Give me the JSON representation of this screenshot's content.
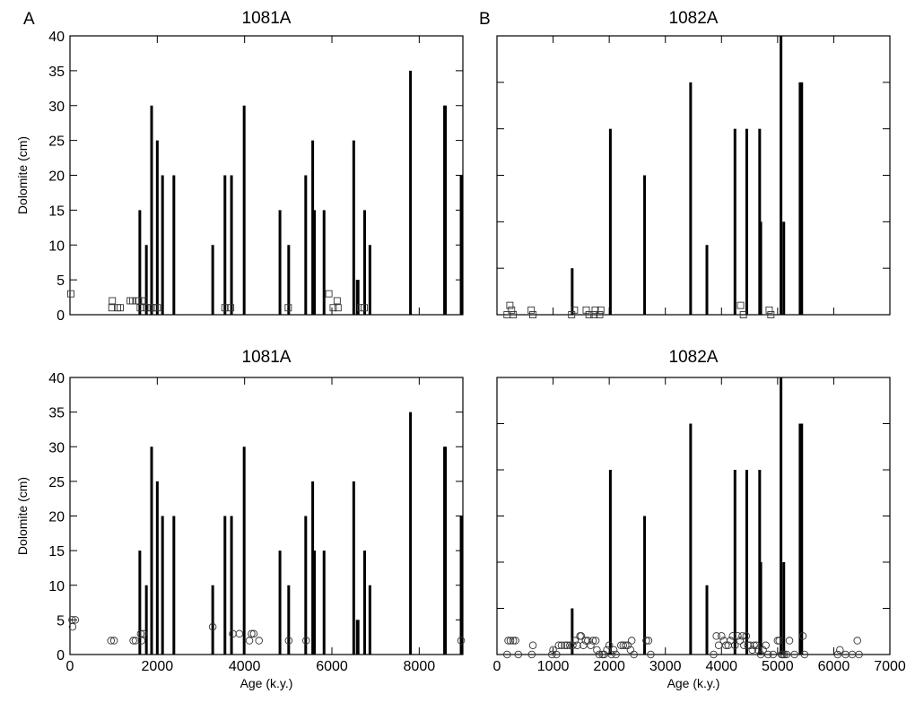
{
  "chart_data": [
    {
      "id": "panel-1081a-top",
      "type": "bar",
      "panel_letter": "A",
      "title": "1081A",
      "xlabel": "",
      "ylabel": "Dolomite (cm)",
      "xlim": [
        0,
        9000
      ],
      "ylim": [
        0,
        40
      ],
      "x_ticks": [
        0,
        2000,
        4000,
        6000,
        8000
      ],
      "x_tick_labels": [],
      "y_ticks": [
        0,
        5,
        10,
        15,
        20,
        25,
        30,
        35,
        40
      ],
      "y_tick_labels": [
        "0",
        "5",
        "10",
        "15",
        "20",
        "25",
        "30",
        "35",
        "40"
      ],
      "bars": [
        {
          "x": 1600,
          "y": 15
        },
        {
          "x": 1750,
          "y": 10
        },
        {
          "x": 1870,
          "y": 30
        },
        {
          "x": 2000,
          "y": 25
        },
        {
          "x": 2120,
          "y": 20
        },
        {
          "x": 2380,
          "y": 20
        },
        {
          "x": 3270,
          "y": 10
        },
        {
          "x": 3550,
          "y": 20
        },
        {
          "x": 3700,
          "y": 20
        },
        {
          "x": 3990,
          "y": 30
        },
        {
          "x": 4810,
          "y": 15
        },
        {
          "x": 5010,
          "y": 10
        },
        {
          "x": 5400,
          "y": 20
        },
        {
          "x": 5560,
          "y": 25
        },
        {
          "x": 5600,
          "y": 15
        },
        {
          "x": 5820,
          "y": 15
        },
        {
          "x": 6500,
          "y": 25
        },
        {
          "x": 6580,
          "y": 5
        },
        {
          "x": 6600,
          "y": 5
        },
        {
          "x": 6750,
          "y": 15
        },
        {
          "x": 6870,
          "y": 10
        },
        {
          "x": 7800,
          "y": 35
        },
        {
          "x": 8580,
          "y": 30
        },
        {
          "x": 8600,
          "y": 30
        },
        {
          "x": 8960,
          "y": 20
        }
      ],
      "points": {
        "marker": "square",
        "values": [
          {
            "x": 20,
            "y": 3
          },
          {
            "x": 970,
            "y": 2
          },
          {
            "x": 960,
            "y": 1
          },
          {
            "x": 1090,
            "y": 1
          },
          {
            "x": 1150,
            "y": 1
          },
          {
            "x": 1380,
            "y": 2
          },
          {
            "x": 1440,
            "y": 2
          },
          {
            "x": 1510,
            "y": 2
          },
          {
            "x": 1570,
            "y": 2
          },
          {
            "x": 1650,
            "y": 2
          },
          {
            "x": 1610,
            "y": 1
          },
          {
            "x": 1700,
            "y": 2
          },
          {
            "x": 1760,
            "y": 1
          },
          {
            "x": 1860,
            "y": 1
          },
          {
            "x": 1930,
            "y": 1
          },
          {
            "x": 2000,
            "y": 1
          },
          {
            "x": 3550,
            "y": 1
          },
          {
            "x": 3680,
            "y": 1
          },
          {
            "x": 5000,
            "y": 1
          },
          {
            "x": 5930,
            "y": 3
          },
          {
            "x": 6030,
            "y": 1
          },
          {
            "x": 6120,
            "y": 2
          },
          {
            "x": 6140,
            "y": 1
          },
          {
            "x": 6660,
            "y": 1
          },
          {
            "x": 6740,
            "y": 1
          }
        ]
      }
    },
    {
      "id": "panel-1082a-top",
      "type": "bar",
      "panel_letter": "B",
      "title": "1082A",
      "xlabel": "",
      "ylabel": "",
      "xlim": [
        0,
        7000
      ],
      "ylim": [
        0,
        30
      ],
      "x_ticks": [
        0,
        1000,
        2000,
        3000,
        4000,
        5000,
        6000,
        7000
      ],
      "x_tick_labels": [],
      "y_ticks": [
        0,
        5,
        10,
        15,
        20,
        25,
        30
      ],
      "y_tick_labels": [],
      "bars": [
        {
          "x": 1340,
          "y": 5
        },
        {
          "x": 2020,
          "y": 20
        },
        {
          "x": 2630,
          "y": 15
        },
        {
          "x": 3450,
          "y": 25
        },
        {
          "x": 3740,
          "y": 7.5
        },
        {
          "x": 4240,
          "y": 20
        },
        {
          "x": 4450,
          "y": 20
        },
        {
          "x": 4680,
          "y": 20
        },
        {
          "x": 4700,
          "y": 10
        },
        {
          "x": 5060,
          "y": 30
        },
        {
          "x": 5110,
          "y": 10
        },
        {
          "x": 5400,
          "y": 25
        },
        {
          "x": 5430,
          "y": 25
        }
      ],
      "points": {
        "marker": "square",
        "values": [
          {
            "x": 180,
            "y": 0
          },
          {
            "x": 230,
            "y": 1
          },
          {
            "x": 260,
            "y": 0.5
          },
          {
            "x": 290,
            "y": 0
          },
          {
            "x": 610,
            "y": 0.5
          },
          {
            "x": 640,
            "y": 0
          },
          {
            "x": 1330,
            "y": 0
          },
          {
            "x": 1380,
            "y": 0.5
          },
          {
            "x": 1590,
            "y": 0.5
          },
          {
            "x": 1640,
            "y": 0
          },
          {
            "x": 1730,
            "y": 0
          },
          {
            "x": 1750,
            "y": 0.5
          },
          {
            "x": 1830,
            "y": 0
          },
          {
            "x": 1850,
            "y": 0.5
          },
          {
            "x": 4340,
            "y": 1
          },
          {
            "x": 4390,
            "y": 0
          },
          {
            "x": 4850,
            "y": 0.5
          },
          {
            "x": 4880,
            "y": 0
          }
        ]
      }
    },
    {
      "id": "panel-1081a-bottom",
      "type": "bar",
      "panel_letter": "",
      "title": "1081A",
      "xlabel": "Age (k.y.)",
      "ylabel": "Dolomite (cm)",
      "xlim": [
        0,
        9000
      ],
      "ylim": [
        0,
        40
      ],
      "x_ticks": [
        0,
        2000,
        4000,
        6000,
        8000
      ],
      "x_tick_labels": [
        "0",
        "2000",
        "4000",
        "6000",
        "8000"
      ],
      "y_ticks": [
        0,
        5,
        10,
        15,
        20,
        25,
        30,
        35,
        40
      ],
      "y_tick_labels": [
        "0",
        "5",
        "10",
        "15",
        "20",
        "25",
        "30",
        "35",
        "40"
      ],
      "bars": [
        {
          "x": 1600,
          "y": 15
        },
        {
          "x": 1750,
          "y": 10
        },
        {
          "x": 1870,
          "y": 30
        },
        {
          "x": 2000,
          "y": 25
        },
        {
          "x": 2120,
          "y": 20
        },
        {
          "x": 2380,
          "y": 20
        },
        {
          "x": 3270,
          "y": 10
        },
        {
          "x": 3550,
          "y": 20
        },
        {
          "x": 3700,
          "y": 20
        },
        {
          "x": 3990,
          "y": 30
        },
        {
          "x": 4810,
          "y": 15
        },
        {
          "x": 5010,
          "y": 10
        },
        {
          "x": 5400,
          "y": 20
        },
        {
          "x": 5560,
          "y": 25
        },
        {
          "x": 5600,
          "y": 15
        },
        {
          "x": 5820,
          "y": 15
        },
        {
          "x": 6500,
          "y": 25
        },
        {
          "x": 6580,
          "y": 5
        },
        {
          "x": 6600,
          "y": 5
        },
        {
          "x": 6750,
          "y": 15
        },
        {
          "x": 6870,
          "y": 10
        },
        {
          "x": 7800,
          "y": 35
        },
        {
          "x": 8580,
          "y": 30
        },
        {
          "x": 8600,
          "y": 30
        },
        {
          "x": 8960,
          "y": 20
        }
      ],
      "points": {
        "marker": "circle",
        "values": [
          {
            "x": 50,
            "y": 5
          },
          {
            "x": 60,
            "y": 4
          },
          {
            "x": 120,
            "y": 5
          },
          {
            "x": 940,
            "y": 2
          },
          {
            "x": 1010,
            "y": 2
          },
          {
            "x": 1450,
            "y": 2
          },
          {
            "x": 1500,
            "y": 2
          },
          {
            "x": 1620,
            "y": 3
          },
          {
            "x": 1640,
            "y": 2
          },
          {
            "x": 1680,
            "y": 3
          },
          {
            "x": 3270,
            "y": 4
          },
          {
            "x": 3730,
            "y": 3
          },
          {
            "x": 3880,
            "y": 3
          },
          {
            "x": 4110,
            "y": 2
          },
          {
            "x": 4160,
            "y": 3
          },
          {
            "x": 4210,
            "y": 3
          },
          {
            "x": 4330,
            "y": 2
          },
          {
            "x": 5010,
            "y": 2
          },
          {
            "x": 5410,
            "y": 2
          },
          {
            "x": 8960,
            "y": 2
          }
        ]
      }
    },
    {
      "id": "panel-1082a-bottom",
      "type": "bar",
      "panel_letter": "",
      "title": "1082A",
      "xlabel": "Age (k.y.)",
      "ylabel": "",
      "xlim": [
        0,
        7000
      ],
      "ylim": [
        0,
        30
      ],
      "x_ticks": [
        0,
        1000,
        2000,
        3000,
        4000,
        5000,
        6000,
        7000
      ],
      "x_tick_labels": [
        "0",
        "1000",
        "2000",
        "3000",
        "4000",
        "5000",
        "6000",
        "7000"
      ],
      "y_ticks": [
        0,
        5,
        10,
        15,
        20,
        25,
        30
      ],
      "y_tick_labels": [],
      "bars": [
        {
          "x": 1340,
          "y": 5
        },
        {
          "x": 2020,
          "y": 20
        },
        {
          "x": 2630,
          "y": 15
        },
        {
          "x": 3450,
          "y": 25
        },
        {
          "x": 3740,
          "y": 7.5
        },
        {
          "x": 4240,
          "y": 20
        },
        {
          "x": 4450,
          "y": 20
        },
        {
          "x": 4680,
          "y": 20
        },
        {
          "x": 4700,
          "y": 10
        },
        {
          "x": 5060,
          "y": 30
        },
        {
          "x": 5110,
          "y": 10
        },
        {
          "x": 5400,
          "y": 25
        },
        {
          "x": 5430,
          "y": 25
        }
      ],
      "points": {
        "marker": "circle",
        "values": [
          {
            "x": 180,
            "y": 0
          },
          {
            "x": 200,
            "y": 1.5
          },
          {
            "x": 240,
            "y": 1.5
          },
          {
            "x": 290,
            "y": 1.5
          },
          {
            "x": 330,
            "y": 1.5
          },
          {
            "x": 380,
            "y": 0
          },
          {
            "x": 620,
            "y": 0
          },
          {
            "x": 640,
            "y": 1
          },
          {
            "x": 980,
            "y": 0
          },
          {
            "x": 1000,
            "y": 0.5
          },
          {
            "x": 1060,
            "y": 0
          },
          {
            "x": 1100,
            "y": 1
          },
          {
            "x": 1150,
            "y": 1
          },
          {
            "x": 1210,
            "y": 1
          },
          {
            "x": 1250,
            "y": 1
          },
          {
            "x": 1300,
            "y": 1
          },
          {
            "x": 1350,
            "y": 1
          },
          {
            "x": 1390,
            "y": 1.5
          },
          {
            "x": 1430,
            "y": 1
          },
          {
            "x": 1480,
            "y": 2
          },
          {
            "x": 1500,
            "y": 2
          },
          {
            "x": 1540,
            "y": 1
          },
          {
            "x": 1580,
            "y": 1.5
          },
          {
            "x": 1620,
            "y": 1.5
          },
          {
            "x": 1670,
            "y": 1
          },
          {
            "x": 1710,
            "y": 1.5
          },
          {
            "x": 1760,
            "y": 1.5
          },
          {
            "x": 1780,
            "y": 0.5
          },
          {
            "x": 1820,
            "y": 0
          },
          {
            "x": 1880,
            "y": 0
          },
          {
            "x": 1910,
            "y": 0
          },
          {
            "x": 1960,
            "y": 0.5
          },
          {
            "x": 2000,
            "y": 1
          },
          {
            "x": 2040,
            "y": 0
          },
          {
            "x": 2080,
            "y": 0.5
          },
          {
            "x": 2120,
            "y": 0
          },
          {
            "x": 2210,
            "y": 1
          },
          {
            "x": 2250,
            "y": 1
          },
          {
            "x": 2290,
            "y": 1
          },
          {
            "x": 2330,
            "y": 1
          },
          {
            "x": 2380,
            "y": 0.5
          },
          {
            "x": 2400,
            "y": 1.5
          },
          {
            "x": 2440,
            "y": 0
          },
          {
            "x": 2660,
            "y": 1.5
          },
          {
            "x": 2700,
            "y": 1.5
          },
          {
            "x": 2740,
            "y": 0
          },
          {
            "x": 3860,
            "y": 0
          },
          {
            "x": 3910,
            "y": 2
          },
          {
            "x": 3950,
            "y": 1
          },
          {
            "x": 4000,
            "y": 2
          },
          {
            "x": 4040,
            "y": 1.5
          },
          {
            "x": 4080,
            "y": 1
          },
          {
            "x": 4120,
            "y": 1
          },
          {
            "x": 4160,
            "y": 1.5
          },
          {
            "x": 4200,
            "y": 2
          },
          {
            "x": 4240,
            "y": 1
          },
          {
            "x": 4290,
            "y": 2
          },
          {
            "x": 4330,
            "y": 1.5
          },
          {
            "x": 4370,
            "y": 2
          },
          {
            "x": 4400,
            "y": 1
          },
          {
            "x": 4440,
            "y": 2
          },
          {
            "x": 4470,
            "y": 1
          },
          {
            "x": 4510,
            "y": 1
          },
          {
            "x": 4550,
            "y": 0.5
          },
          {
            "x": 4580,
            "y": 1
          },
          {
            "x": 4620,
            "y": 1
          },
          {
            "x": 4650,
            "y": 0.5
          },
          {
            "x": 4700,
            "y": 0
          },
          {
            "x": 4740,
            "y": 0.5
          },
          {
            "x": 4790,
            "y": 1
          },
          {
            "x": 4830,
            "y": 0
          },
          {
            "x": 4920,
            "y": 0
          },
          {
            "x": 5000,
            "y": 1.5
          },
          {
            "x": 5030,
            "y": 1.5
          },
          {
            "x": 5070,
            "y": 0
          },
          {
            "x": 5090,
            "y": 0
          },
          {
            "x": 5120,
            "y": 0
          },
          {
            "x": 5160,
            "y": 0
          },
          {
            "x": 5210,
            "y": 1.5
          },
          {
            "x": 5300,
            "y": 0
          },
          {
            "x": 5450,
            "y": 2
          },
          {
            "x": 5480,
            "y": 0
          },
          {
            "x": 6070,
            "y": 0
          },
          {
            "x": 6110,
            "y": 0.5
          },
          {
            "x": 6210,
            "y": 0
          },
          {
            "x": 6330,
            "y": 0
          },
          {
            "x": 6420,
            "y": 1.5
          },
          {
            "x": 6450,
            "y": 0
          }
        ]
      }
    }
  ]
}
